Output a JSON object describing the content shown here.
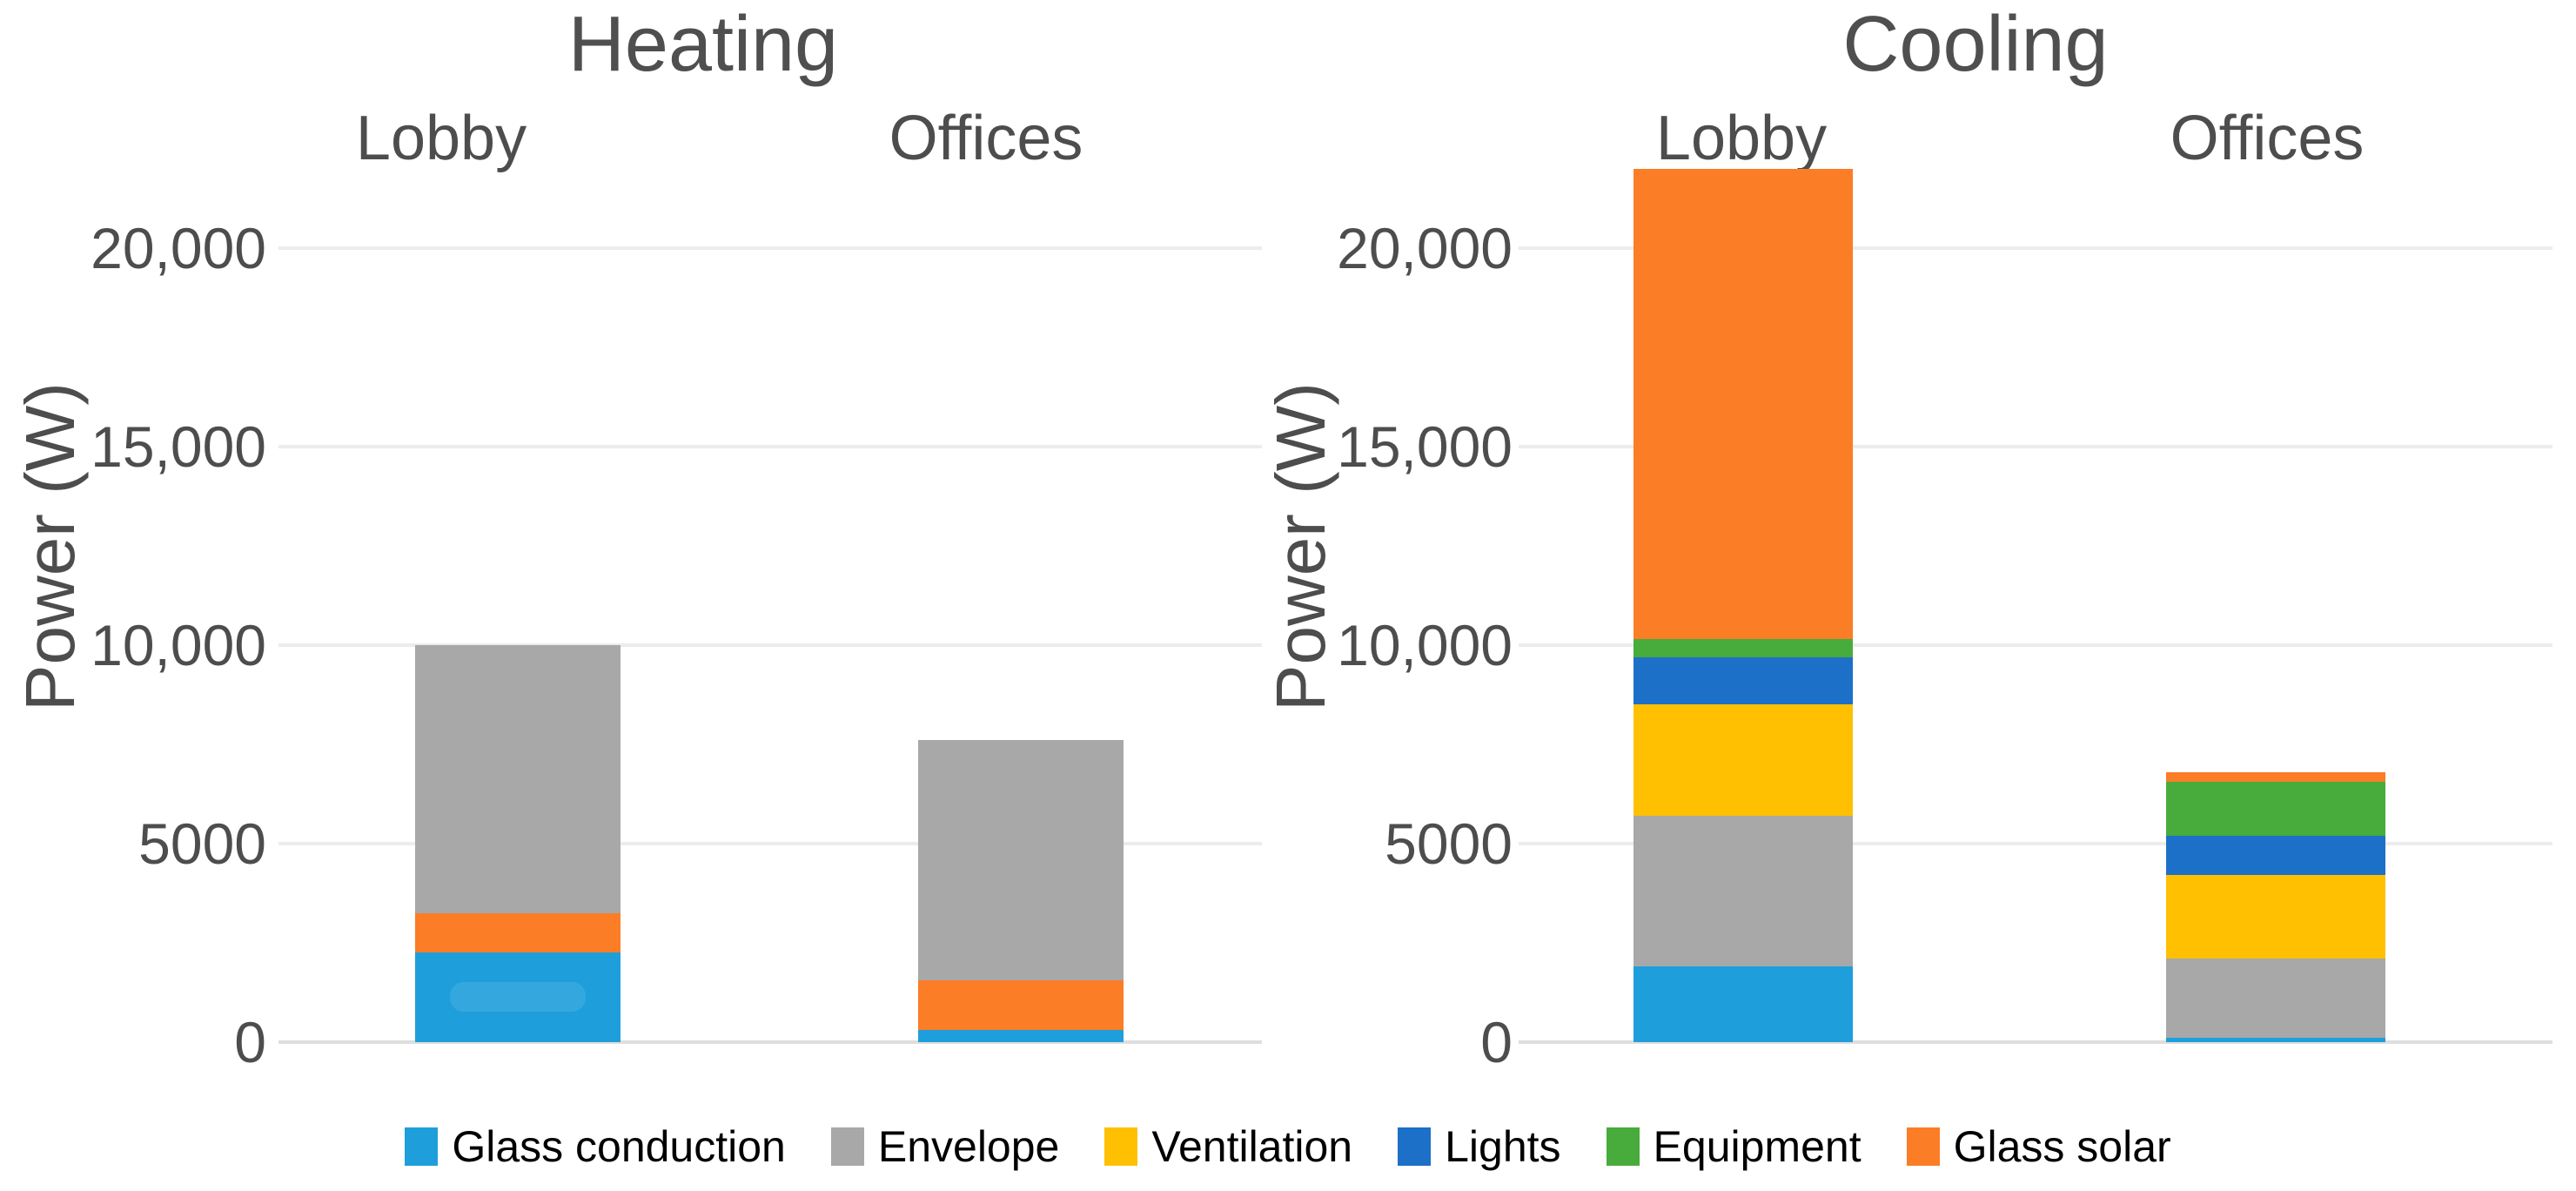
{
  "background": "#FFFFFF",
  "grid_color": "#ECECEC",
  "baseline_color": "#DEDEDE",
  "text_colors": {
    "title": "#4F4F4F",
    "axis": "#4D4D4D",
    "legend": "#000000"
  },
  "chart_data": [
    {
      "type": "bar",
      "stacked": true,
      "title": "Heating",
      "ylabel": "Power (W)",
      "categories": [
        "Lobby",
        "Offices"
      ],
      "ylim": [
        0,
        20000
      ],
      "yticks": [
        0,
        5000,
        10000,
        15000,
        20000
      ],
      "ytick_labels": [
        "0",
        "5000",
        "10,000",
        "15,000",
        "20,000"
      ],
      "grid": "horizontal gridlines at each 5000",
      "series": [
        {
          "name": "Glass conduction",
          "values": [
            2250,
            300
          ]
        },
        {
          "name": "Glass solar",
          "values": [
            1000,
            1250
          ]
        },
        {
          "name": "Envelope",
          "values": [
            6750,
            6050
          ]
        }
      ],
      "bar_totals": [
        10000,
        7600
      ]
    },
    {
      "type": "bar",
      "stacked": true,
      "title": "Cooling",
      "ylabel": "Power (W)",
      "categories": [
        "Lobby",
        "Offices"
      ],
      "ylim": [
        0,
        20000
      ],
      "yticks": [
        0,
        5000,
        10000,
        15000,
        20000
      ],
      "ytick_labels": [
        "0",
        "5000",
        "10,000",
        "15,000",
        "20,000"
      ],
      "grid": "horizontal gridlines at each 5000",
      "series": [
        {
          "name": "Glass conduction",
          "values": [
            1900,
            100
          ]
        },
        {
          "name": "Envelope",
          "values": [
            3800,
            2000
          ]
        },
        {
          "name": "Ventilation",
          "values": [
            2800,
            2100
          ]
        },
        {
          "name": "Lights",
          "values": [
            1200,
            1000
          ]
        },
        {
          "name": "Equipment",
          "values": [
            450,
            1350
          ]
        },
        {
          "name": "Glass solar",
          "values": [
            11850,
            250
          ]
        }
      ],
      "bar_totals": [
        22000,
        6800
      ]
    }
  ],
  "legend": {
    "position": "bottom",
    "items": [
      {
        "label": "Glass conduction",
        "color": "#1E9FDB"
      },
      {
        "label": "Envelope",
        "color": "#A8A8A8"
      },
      {
        "label": "Ventilation",
        "color": "#FFC002"
      },
      {
        "label": "Lights",
        "color": "#1C70C8"
      },
      {
        "label": "Equipment",
        "color": "#47AC3B"
      },
      {
        "label": "Glass solar",
        "color": "#FB7D26"
      }
    ]
  }
}
